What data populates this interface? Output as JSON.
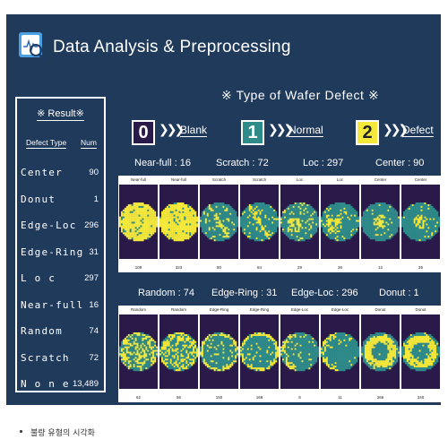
{
  "title": "Data Analysis & Preprocessing",
  "result": {
    "title": "※ Result※",
    "col_type": "Defect Type",
    "col_num": "Num",
    "rows": [
      {
        "name": "Center",
        "num": "90"
      },
      {
        "name": "Donut",
        "num": "1"
      },
      {
        "name": "Edge-Loc",
        "num": "296"
      },
      {
        "name": "Edge-Ring",
        "num": "31"
      },
      {
        "name": "L o c",
        "num": "297"
      },
      {
        "name": "Near-full",
        "num": "16"
      },
      {
        "name": "Random",
        "num": "74"
      },
      {
        "name": "Scratch",
        "num": "72"
      },
      {
        "name": "N o n e",
        "num": "13,489"
      }
    ]
  },
  "type_title": "※ Type of Wafer Defect ※",
  "categories": [
    {
      "num": "0",
      "label": "Blank",
      "color": "#2a1a4a",
      "text_color": "#ffffff"
    },
    {
      "num": "1",
      "label": "Normal",
      "color": "#2f8a8a",
      "text_color": "#ffffff"
    },
    {
      "num": "2",
      "label": "Defect",
      "color": "#f4e83a",
      "text_color": "#222222"
    }
  ],
  "arrow": "❯❯❯",
  "groups_top": [
    {
      "label": "Near-full : 16"
    },
    {
      "label": "Scratch : 72"
    },
    {
      "label": "Loc : 297"
    },
    {
      "label": "Center : 90"
    }
  ],
  "groups_bottom": [
    {
      "label": "Random : 74"
    },
    {
      "label": "Edge-Ring : 31"
    },
    {
      "label": "Edge-Loc : 296"
    },
    {
      "label": "Donut : 1"
    }
  ],
  "wafers_top": [
    {
      "top": "Near-full",
      "bottom": "109",
      "kind": "full"
    },
    {
      "top": "Near-full",
      "bottom": "323",
      "kind": "full"
    },
    {
      "top": "Scratch",
      "bottom": "80",
      "kind": "scratch"
    },
    {
      "top": "Scratch",
      "bottom": "84",
      "kind": "scratch"
    },
    {
      "top": "Loc",
      "bottom": "29",
      "kind": "loc"
    },
    {
      "top": "Loc",
      "bottom": "36",
      "kind": "loc"
    },
    {
      "top": "Center",
      "bottom": "12",
      "kind": "center"
    },
    {
      "top": "Center",
      "bottom": "26",
      "kind": "center"
    }
  ],
  "wafers_bottom": [
    {
      "top": "Random",
      "bottom": "62",
      "kind": "random"
    },
    {
      "top": "Random",
      "bottom": "66",
      "kind": "random"
    },
    {
      "top": "Edge-Ring",
      "bottom": "150",
      "kind": "edgering"
    },
    {
      "top": "Edge-Ring",
      "bottom": "169",
      "kind": "edgering"
    },
    {
      "top": "Edge-Loc",
      "bottom": "8",
      "kind": "edgeloc"
    },
    {
      "top": "Edge-Loc",
      "bottom": "11",
      "kind": "edgeloc"
    },
    {
      "top": "Donut",
      "bottom": "266",
      "kind": "donut"
    },
    {
      "top": "Donut",
      "bottom": "340",
      "kind": "donut"
    }
  ],
  "caption": "불량 유형의 시각화",
  "colors": {
    "background": "#203a5c",
    "wafer_normal": "#2f8a8a",
    "wafer_defect": "#f4e83a",
    "wafer_blank": "#2a1a4a"
  }
}
